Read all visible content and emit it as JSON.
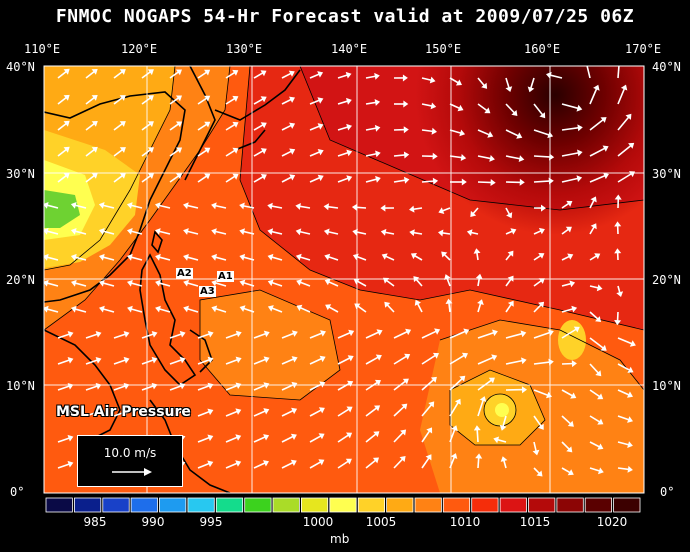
{
  "title": "FNMOC NOGAPS 54-Hr Forecast valid at 2009/07/25 06Z",
  "lon_labels": [
    "110°E",
    "120°E",
    "130°E",
    "140°E",
    "150°E",
    "160°E",
    "170°E"
  ],
  "lat_labels": [
    "40°N",
    "30°N",
    "20°N",
    "10°N",
    "0°"
  ],
  "overlay_label": "MSL Air Pressure",
  "reference_vector": {
    "text": "10.0 m/s"
  },
  "storm_labels": [
    "A2",
    "A1",
    "A3"
  ],
  "colorbar": {
    "ticks": [
      "985",
      "990",
      "995",
      "1000",
      "1005",
      "1010",
      "1015",
      "1020"
    ],
    "unit": "mb",
    "colors": [
      "#0a0a46",
      "#0a1f8c",
      "#1941c8",
      "#1e6eeb",
      "#1e9bf0",
      "#28c8f0",
      "#14dc8c",
      "#3cd21e",
      "#aadc28",
      "#e6e61e",
      "#ffff50",
      "#ffd228",
      "#ffaa14",
      "#ff8214",
      "#ff5a0f",
      "#f52d0a",
      "#dc1414",
      "#b40a0a",
      "#8c0505",
      "#5a0000",
      "#3c0000"
    ]
  },
  "colors": {
    "background": "#000000",
    "land": "#000000",
    "grid": "#ffffff",
    "vectors": "#ffffff"
  }
}
